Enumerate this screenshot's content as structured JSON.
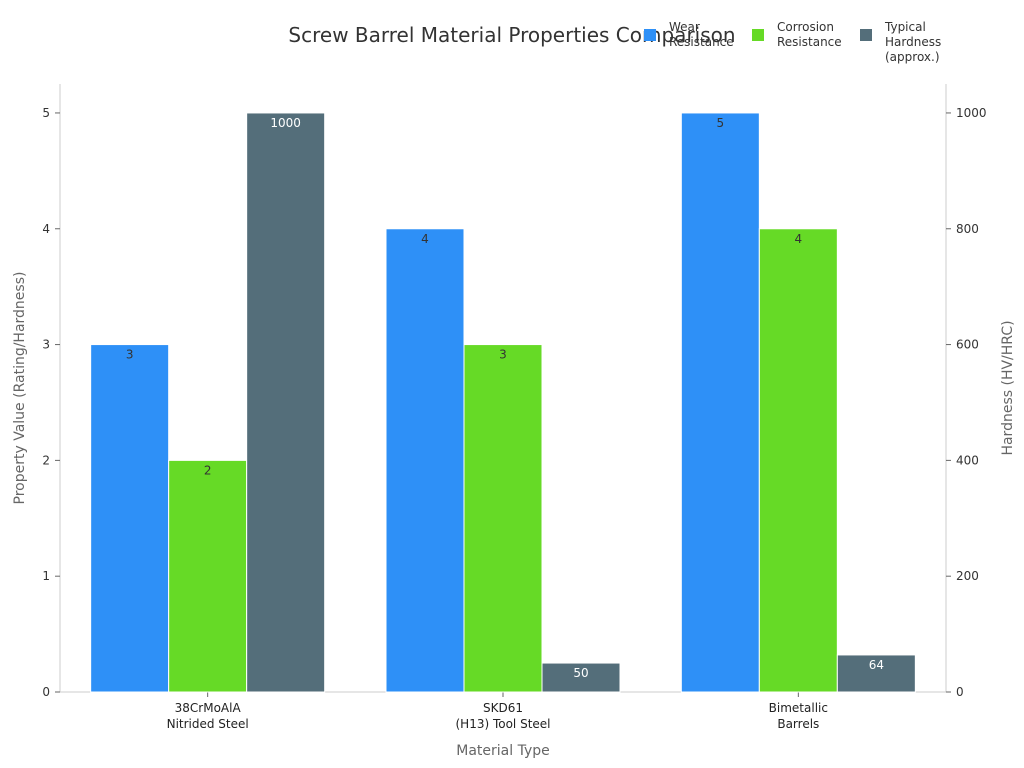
{
  "chart_data": {
    "type": "bar",
    "title": "Screw Barrel Material Properties Comparison",
    "xlabel": "Material Type",
    "ylabel": "Property Value (Rating/Hardness)",
    "y2label": "Hardness (HV/HRC)",
    "categories": [
      [
        "38CrMoAlA",
        "Nitrided Steel"
      ],
      [
        "SKD61",
        "(H13) Tool Steel"
      ],
      [
        "Bimetallic",
        "Barrels"
      ]
    ],
    "ylim": [
      0,
      5.25
    ],
    "y2lim": [
      0,
      1050
    ],
    "yticks": [
      0,
      1,
      2,
      3,
      4,
      5
    ],
    "y2ticks": [
      0,
      200,
      400,
      600,
      800,
      1000
    ],
    "series": [
      {
        "name": [
          "Wear",
          "Resistance"
        ],
        "axis": "left",
        "color": "#2E90F7",
        "values": [
          3,
          4,
          5
        ],
        "labels": [
          "3",
          "4",
          "5"
        ]
      },
      {
        "name": [
          "Corrosion",
          "Resistance"
        ],
        "axis": "left",
        "color": "#66DA26",
        "values": [
          2,
          3,
          4
        ],
        "labels": [
          "2",
          "3",
          "4"
        ]
      },
      {
        "name": [
          "Typical",
          "Hardness",
          "(approx.)"
        ],
        "axis": "right",
        "color": "#546E7A",
        "values": [
          1000,
          50,
          64
        ],
        "labels": [
          "1000",
          "50",
          "64"
        ]
      }
    ],
    "legend_position": "top-right",
    "grid": false
  }
}
